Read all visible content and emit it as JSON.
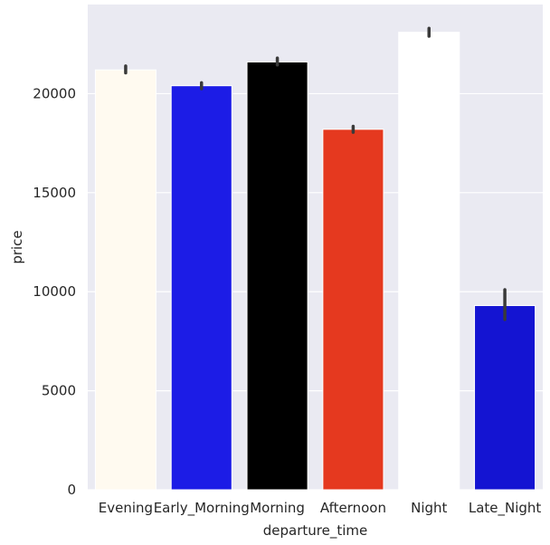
{
  "chart_data": {
    "type": "bar",
    "title": "",
    "xlabel": "departure_time",
    "ylabel": "price",
    "categories": [
      "Evening",
      "Early_Morning",
      "Morning",
      "Afternoon",
      "Night",
      "Late_Night"
    ],
    "values": [
      21200,
      20400,
      21600,
      18200,
      23100,
      9300
    ],
    "error_low": [
      21050,
      20250,
      21450,
      18050,
      22900,
      8600
    ],
    "error_high": [
      21400,
      20550,
      21800,
      18350,
      23300,
      10100
    ],
    "bar_colors": [
      "#fffaf0",
      "#1c1ce6",
      "#000000",
      "#e5391f",
      "#ffffff",
      "#1414d2"
    ],
    "yticks": [
      0,
      5000,
      10000,
      15000,
      20000
    ],
    "ylim": [
      0,
      24500
    ],
    "grid": true,
    "legend": "none"
  },
  "style": {
    "plot_background": "#eaeaf2",
    "grid_color": "#ffffff",
    "errorbar_color": "#3a3a3a",
    "bar_edge_color": "#ffffff"
  }
}
